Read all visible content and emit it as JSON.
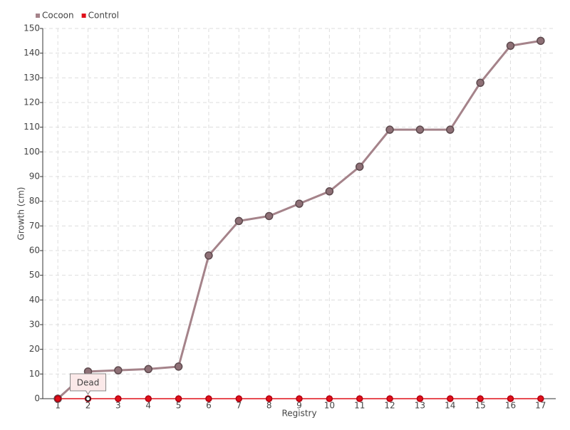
{
  "chart_data": {
    "type": "line",
    "x_label": "Registry",
    "y_label": "Growth (cm)",
    "categories": [
      "1",
      "2",
      "3",
      "4",
      "5",
      "6",
      "7",
      "8",
      "9",
      "10",
      "11",
      "12",
      "13",
      "14",
      "15",
      "16",
      "17"
    ],
    "series": [
      {
        "name": "Cocoon",
        "color": "#a5838a",
        "values": [
          0,
          11,
          11.5,
          12,
          13,
          58,
          72,
          74,
          79,
          84,
          94,
          109,
          109,
          109,
          128,
          143,
          145
        ]
      },
      {
        "name": "Control",
        "color": "#e0101a",
        "values": [
          0,
          0,
          0,
          0,
          0,
          0,
          0,
          0,
          0,
          0,
          0,
          0,
          0,
          0,
          0,
          0,
          0
        ]
      }
    ],
    "annotation": "Dead",
    "ylim": [
      0,
      150
    ],
    "yticks": [
      0,
      10,
      20,
      30,
      40,
      50,
      60,
      70,
      80,
      90,
      100,
      110,
      120,
      130,
      140,
      150
    ],
    "grid": true,
    "legend": "top-left"
  }
}
